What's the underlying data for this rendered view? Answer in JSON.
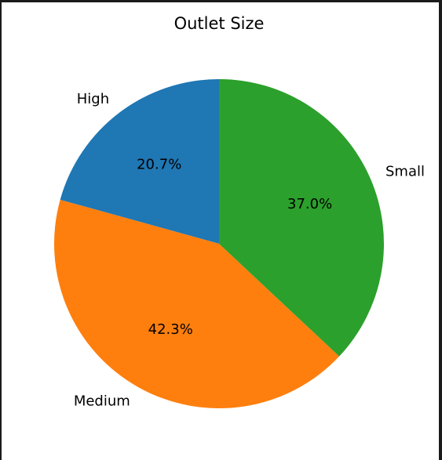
{
  "chart_data": {
    "type": "pie",
    "title": "Outlet Size",
    "slices": [
      {
        "label": "High",
        "value": 20.7,
        "pct_label": "20.7%",
        "color": "#1f77b4"
      },
      {
        "label": "Medium",
        "value": 42.3,
        "pct_label": "42.3%",
        "color": "#ff7f0e"
      },
      {
        "label": "Small",
        "value": 37.0,
        "pct_label": "37.0%",
        "color": "#2ca02c"
      }
    ],
    "start_angle_deg": 90,
    "direction": "counterclockwise"
  }
}
